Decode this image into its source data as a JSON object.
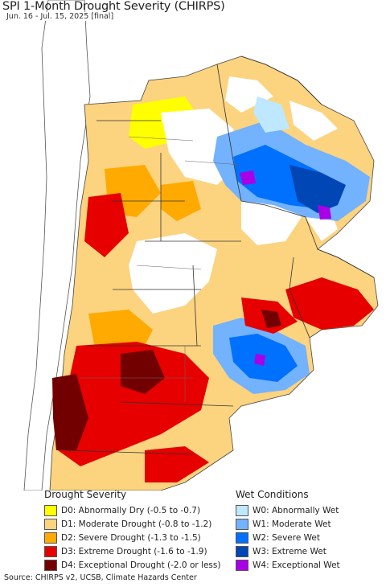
{
  "title": "SPI 1-Month Drought Severity (CHIRPS)",
  "subtitle": "Jun. 16 - Jul. 15, 2025 [final]",
  "source": "Source: CHIRPS v2, UCSB, Climate Hazards Center",
  "legend": {
    "drought": {
      "heading": "Drought Severity",
      "items": [
        {
          "label": "D0: Abnormally Dry (-0.5 to -0.7)",
          "color": "#ffff00"
        },
        {
          "label": "D1: Moderate Drought (-0.8 to -1.2)",
          "color": "#fcd37f"
        },
        {
          "label": "D2: Severe Drought (-1.3 to -1.5)",
          "color": "#ffaa00"
        },
        {
          "label": "D3: Extreme Drought (-1.6 to -1.9)",
          "color": "#e60000"
        },
        {
          "label": "D4: Exceptional Drought (-2.0 or less)",
          "color": "#730000"
        }
      ]
    },
    "wet": {
      "heading": "Wet Conditions",
      "items": [
        {
          "label": "W0: Abnormally Wet",
          "color": "#bee8ff"
        },
        {
          "label": "W1: Moderate Wet",
          "color": "#73b2ff"
        },
        {
          "label": "W2: Severe Wet",
          "color": "#0070ff"
        },
        {
          "label": "W3: Extreme Wet",
          "color": "#0046b4"
        },
        {
          "label": "W4: Exceptional Wet",
          "color": "#a900e6"
        }
      ]
    }
  }
}
